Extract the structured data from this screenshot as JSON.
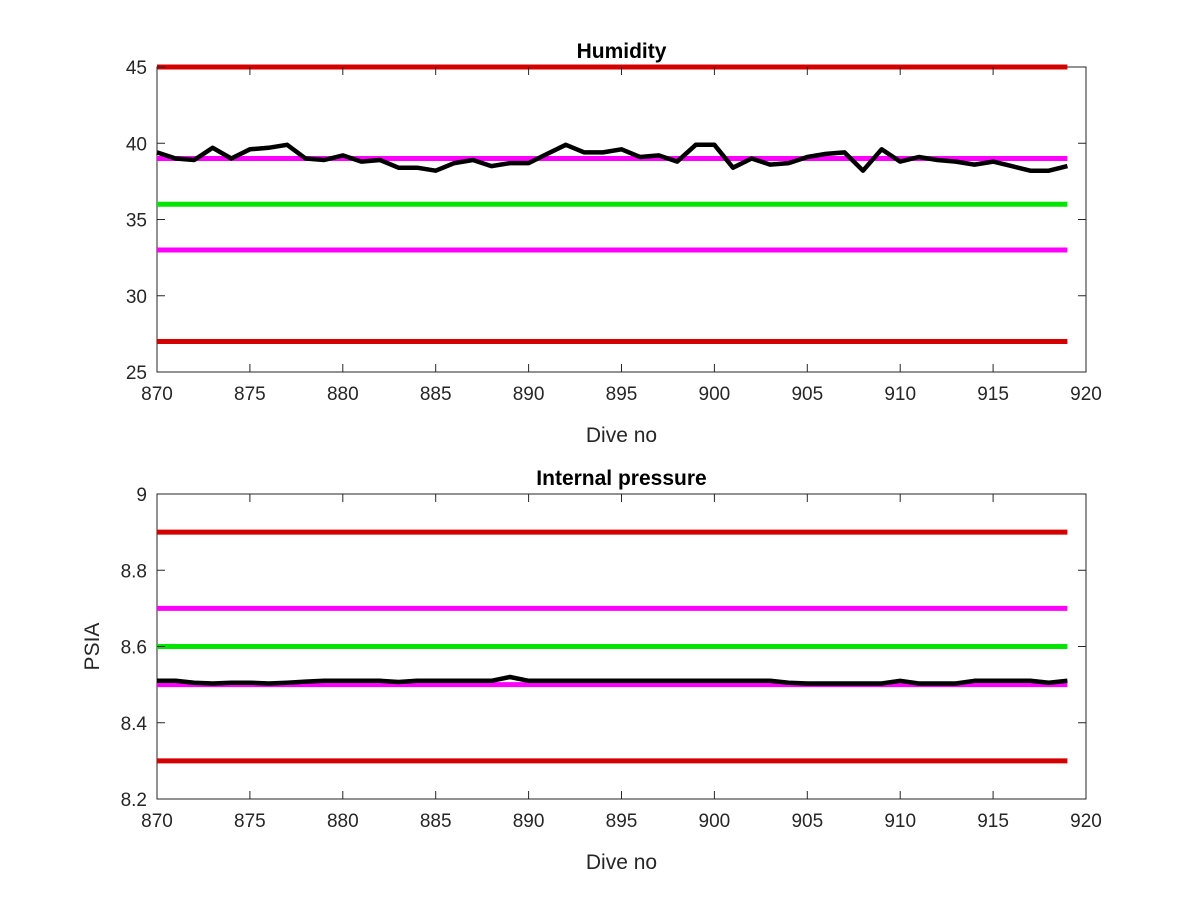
{
  "chart_data": [
    {
      "type": "line",
      "title": "Humidity",
      "xlabel": "Dive no",
      "ylabel": "",
      "xlim": [
        870,
        920
      ],
      "ylim": [
        25,
        45
      ],
      "xticks": [
        870,
        875,
        880,
        885,
        890,
        895,
        900,
        905,
        910,
        915,
        920
      ],
      "yticks": [
        25,
        30,
        35,
        40,
        45
      ],
      "x_tick_labels": [
        "870",
        "875",
        "880",
        "885",
        "890",
        "895",
        "900",
        "905",
        "910",
        "915",
        "920"
      ],
      "y_tick_labels": [
        "25",
        "30",
        "35",
        "40",
        "45"
      ],
      "grid": false,
      "reference_lines": [
        {
          "y": 45,
          "color": "#d40000",
          "x": [
            870,
            919
          ]
        },
        {
          "y": 39,
          "color": "#ff00ff",
          "x": [
            870,
            919
          ]
        },
        {
          "y": 36,
          "color": "#00e600",
          "x": [
            870,
            919
          ]
        },
        {
          "y": 33,
          "color": "#ff00ff",
          "x": [
            870,
            919
          ]
        },
        {
          "y": 27,
          "color": "#d40000",
          "x": [
            870,
            919
          ]
        }
      ],
      "series": [
        {
          "color": "#000000",
          "x": [
            870,
            871,
            872,
            873,
            874,
            875,
            876,
            877,
            878,
            879,
            880,
            881,
            882,
            883,
            884,
            885,
            886,
            887,
            888,
            889,
            890,
            891,
            892,
            893,
            894,
            895,
            896,
            897,
            898,
            899,
            900,
            901,
            902,
            903,
            904,
            905,
            906,
            907,
            908,
            909,
            910,
            911,
            912,
            913,
            914,
            915,
            916,
            917,
            918,
            919
          ],
          "values": [
            39.4,
            39.0,
            38.9,
            39.7,
            39.0,
            39.6,
            39.7,
            39.9,
            39.0,
            38.9,
            39.2,
            38.8,
            38.9,
            38.4,
            38.4,
            38.2,
            38.7,
            38.9,
            38.5,
            38.7,
            38.7,
            39.3,
            39.9,
            39.4,
            39.4,
            39.6,
            39.1,
            39.2,
            38.8,
            39.9,
            39.9,
            38.4,
            39.0,
            38.6,
            38.7,
            39.1,
            39.3,
            39.4,
            38.2,
            39.6,
            38.8,
            39.1,
            38.9,
            38.8,
            38.6,
            38.8,
            38.5,
            38.2,
            38.2,
            38.5
          ]
        }
      ]
    },
    {
      "type": "line",
      "title": "Internal pressure",
      "xlabel": "Dive no",
      "ylabel": "PSIA",
      "xlim": [
        870,
        920
      ],
      "ylim": [
        8.2,
        9.0
      ],
      "xticks": [
        870,
        875,
        880,
        885,
        890,
        895,
        900,
        905,
        910,
        915,
        920
      ],
      "yticks": [
        8.2,
        8.4,
        8.6,
        8.8,
        9.0
      ],
      "x_tick_labels": [
        "870",
        "875",
        "880",
        "885",
        "890",
        "895",
        "900",
        "905",
        "910",
        "915",
        "920"
      ],
      "y_tick_labels": [
        "8.2",
        "8.4",
        "8.6",
        "8.8",
        "9"
      ],
      "grid": false,
      "reference_lines": [
        {
          "y": 8.9,
          "color": "#d40000",
          "x": [
            870,
            919
          ]
        },
        {
          "y": 8.7,
          "color": "#ff00ff",
          "x": [
            870,
            919
          ]
        },
        {
          "y": 8.6,
          "color": "#00e600",
          "x": [
            870,
            919
          ]
        },
        {
          "y": 8.5,
          "color": "#ff00ff",
          "x": [
            870,
            919
          ]
        },
        {
          "y": 8.3,
          "color": "#d40000",
          "x": [
            870,
            919
          ]
        }
      ],
      "series": [
        {
          "color": "#000000",
          "x": [
            870,
            871,
            872,
            873,
            874,
            875,
            876,
            877,
            878,
            879,
            880,
            881,
            882,
            883,
            884,
            885,
            886,
            887,
            888,
            889,
            890,
            891,
            892,
            893,
            894,
            895,
            896,
            897,
            898,
            899,
            900,
            901,
            902,
            903,
            904,
            905,
            906,
            907,
            908,
            909,
            910,
            911,
            912,
            913,
            914,
            915,
            916,
            917,
            918,
            919
          ],
          "values": [
            8.51,
            8.51,
            8.505,
            8.503,
            8.505,
            8.505,
            8.503,
            8.505,
            8.508,
            8.51,
            8.51,
            8.51,
            8.51,
            8.507,
            8.51,
            8.51,
            8.51,
            8.51,
            8.51,
            8.52,
            8.51,
            8.51,
            8.51,
            8.51,
            8.51,
            8.51,
            8.51,
            8.51,
            8.51,
            8.51,
            8.51,
            8.51,
            8.51,
            8.51,
            8.505,
            8.503,
            8.503,
            8.503,
            8.503,
            8.503,
            8.51,
            8.503,
            8.503,
            8.503,
            8.51,
            8.51,
            8.51,
            8.51,
            8.505,
            8.51
          ]
        }
      ]
    }
  ]
}
